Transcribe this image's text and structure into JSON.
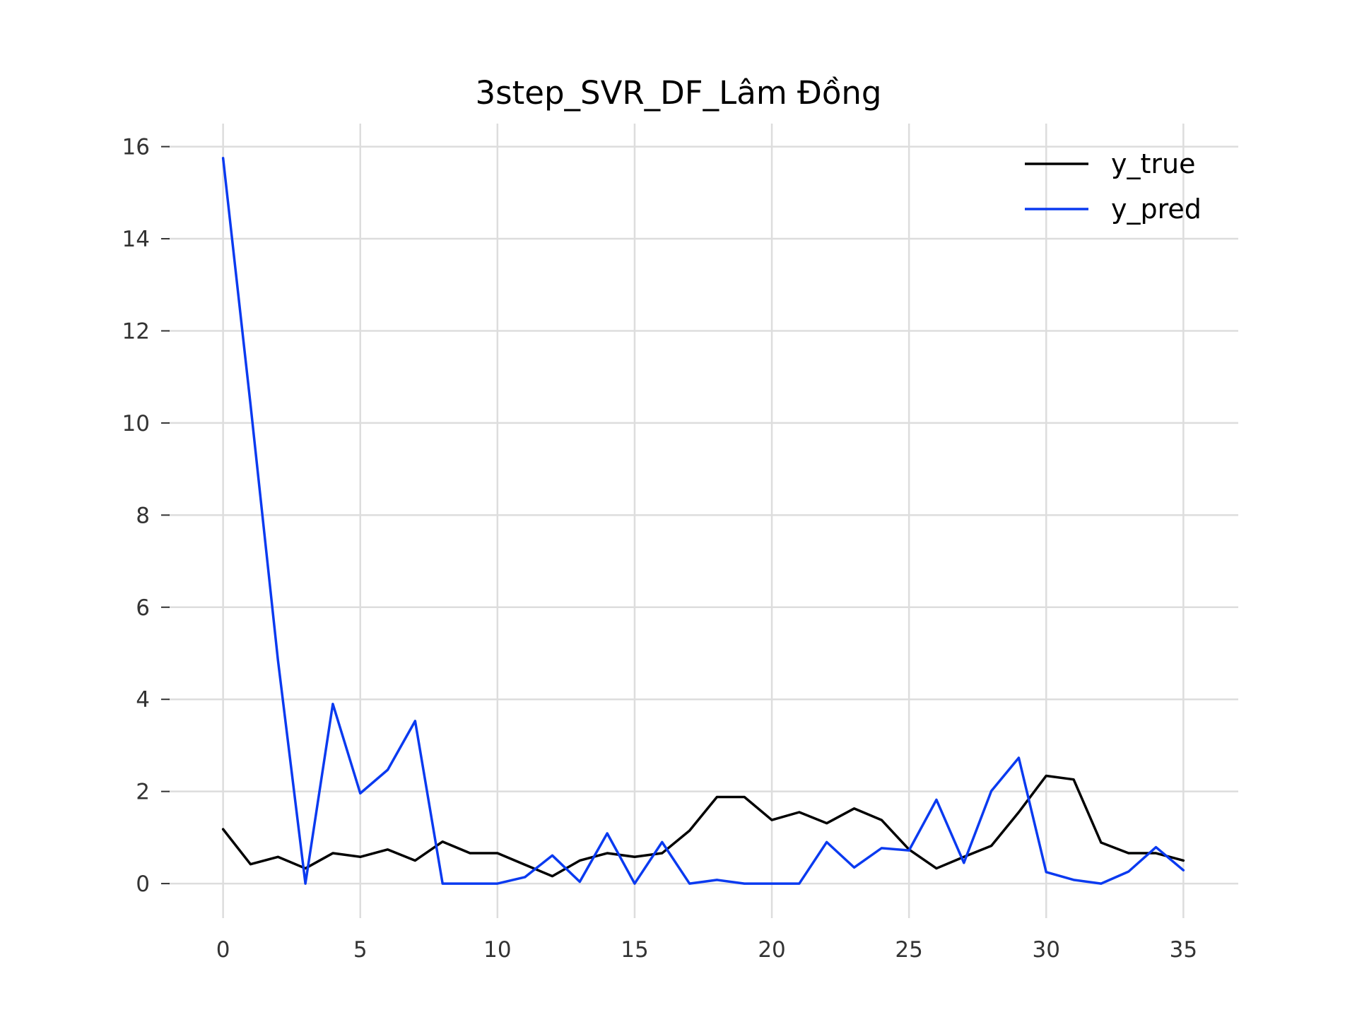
{
  "chart_data": {
    "type": "line",
    "title": "3step_SVR_DF_Lâm Đồng",
    "xlabel": "",
    "ylabel": "",
    "xlim": [
      -2,
      37
    ],
    "ylim": [
      -0.75,
      16.5
    ],
    "x_ticks": [
      0,
      5,
      10,
      15,
      20,
      25,
      30,
      35
    ],
    "y_ticks": [
      0,
      2,
      4,
      6,
      8,
      10,
      12,
      14,
      16
    ],
    "grid": true,
    "legend_position": "top-right",
    "x": [
      0,
      1,
      2,
      3,
      4,
      5,
      6,
      7,
      8,
      9,
      10,
      11,
      12,
      13,
      14,
      15,
      16,
      17,
      18,
      19,
      20,
      21,
      22,
      23,
      24,
      25,
      26,
      27,
      28,
      29,
      30,
      31,
      32,
      33,
      34,
      35
    ],
    "series": [
      {
        "name": "y_true",
        "color": "#000000",
        "values": [
          1.18,
          0.42,
          0.58,
          0.33,
          0.66,
          0.58,
          0.74,
          0.5,
          0.91,
          0.66,
          0.66,
          0.41,
          0.16,
          0.5,
          0.66,
          0.58,
          0.66,
          1.15,
          1.88,
          1.88,
          1.38,
          1.55,
          1.31,
          1.63,
          1.38,
          0.74,
          0.33,
          0.58,
          0.82,
          1.55,
          2.34,
          2.26,
          0.89,
          0.66,
          0.66,
          0.5
        ]
      },
      {
        "name": "y_pred",
        "color": "#0a3af0",
        "values": [
          15.75,
          10.4,
          4.85,
          0.0,
          3.9,
          1.96,
          2.47,
          3.53,
          0.0,
          0.0,
          0.0,
          0.14,
          0.61,
          0.04,
          1.09,
          0.0,
          0.9,
          0.0,
          0.08,
          0.0,
          0.0,
          0.0,
          0.9,
          0.35,
          0.77,
          0.72,
          1.82,
          0.45,
          2.01,
          2.73,
          0.25,
          0.08,
          0.0,
          0.26,
          0.79,
          0.29
        ]
      }
    ]
  }
}
